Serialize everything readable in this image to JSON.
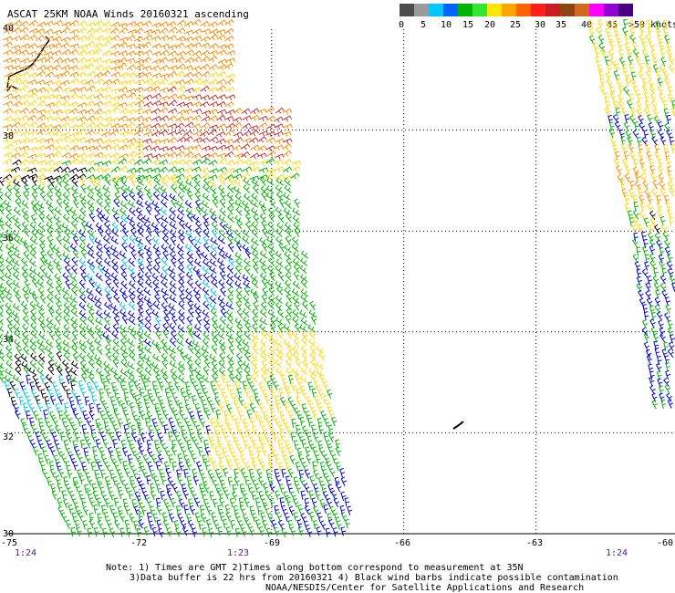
{
  "title": "ASCAT 25KM NOAA Winds 20160321 ascending",
  "legend": {
    "ticks": [
      "0",
      "5",
      "10",
      "15",
      "20",
      "25",
      "30",
      "35",
      "40",
      "45",
      ">50 knots"
    ],
    "colors": [
      "#4d4d4d",
      "#9a9a9a",
      "#00c8ff",
      "#0064ff",
      "#00b400",
      "#32e632",
      "#ffe600",
      "#ffa500",
      "#ff6400",
      "#ff1e1e",
      "#c81e1e",
      "#8b4513",
      "#d2691e",
      "#ff00ff",
      "#9400d3",
      "#4b0082"
    ]
  },
  "lat_labels": [
    "40",
    "38",
    "36",
    "34",
    "32",
    "30"
  ],
  "lon_labels": [
    "-75",
    "-72",
    "-69",
    "-66",
    "-63",
    "-60"
  ],
  "times": [
    "1:24",
    "1:23",
    "1:24"
  ],
  "notes": [
    "Note: 1) Times are GMT 2)Times along bottom correspond to measurement at 35N",
    "3)Data buffer is 22 hrs from 20160321 4) Black wind barbs indicate possible contamination",
    "NOAA/NESDIS/Center for Satellite Applications and Research"
  ],
  "speed_colors": {
    "0-10": "#0000d0",
    "10-15": "#00c8e6",
    "15-20": "#00b400",
    "20-25": "#ffd700",
    "25-30": "#ff8c00",
    "30-35": "#c83232",
    "contaminated": "#000000"
  }
}
